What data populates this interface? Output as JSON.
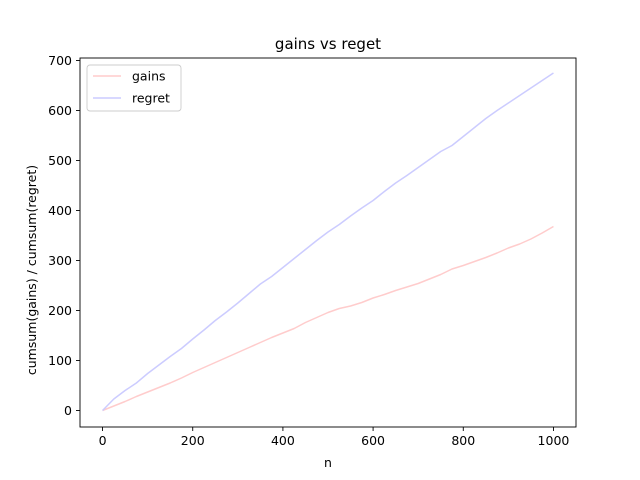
{
  "chart_data": {
    "type": "line",
    "title": "gains vs reget",
    "xlabel": "n",
    "ylabel": "cumsum(gains) / cumsum(regret)",
    "xlim": [
      -50,
      1050
    ],
    "ylim": [
      -33,
      705
    ],
    "xticks": [
      0,
      200,
      400,
      600,
      800,
      1000
    ],
    "yticks": [
      0,
      100,
      200,
      300,
      400,
      500,
      600,
      700
    ],
    "grid": false,
    "legend": "top-left",
    "series": [
      {
        "name": "gains",
        "color": "#ffcccc",
        "x": [
          0,
          25,
          50,
          75,
          100,
          125,
          150,
          175,
          200,
          225,
          250,
          275,
          300,
          325,
          350,
          375,
          400,
          425,
          450,
          475,
          500,
          525,
          550,
          575,
          600,
          625,
          650,
          675,
          700,
          725,
          750,
          775,
          800,
          825,
          850,
          875,
          900,
          925,
          950,
          975,
          1000
        ],
        "y": [
          0,
          9,
          18,
          28,
          37,
          46,
          55,
          65,
          76,
          86,
          96,
          106,
          116,
          126,
          136,
          146,
          155,
          164,
          176,
          186,
          196,
          204,
          209,
          216,
          225,
          232,
          240,
          247,
          254,
          263,
          272,
          283,
          290,
          298,
          306,
          315,
          325,
          333,
          343,
          355,
          368
        ]
      },
      {
        "name": "regret",
        "color": "#ccccff",
        "x": [
          0,
          25,
          50,
          75,
          100,
          125,
          150,
          175,
          200,
          225,
          250,
          275,
          300,
          325,
          350,
          375,
          400,
          425,
          450,
          475,
          500,
          525,
          550,
          575,
          600,
          625,
          650,
          675,
          700,
          725,
          750,
          775,
          800,
          825,
          850,
          875,
          900,
          925,
          950,
          975,
          1000
        ],
        "y": [
          0,
          23,
          40,
          55,
          74,
          91,
          108,
          124,
          143,
          161,
          180,
          197,
          215,
          234,
          253,
          268,
          286,
          304,
          322,
          340,
          357,
          372,
          389,
          405,
          420,
          438,
          455,
          470,
          486,
          502,
          518,
          530,
          548,
          566,
          584,
          600,
          615,
          630,
          645,
          660,
          675
        ]
      }
    ]
  }
}
